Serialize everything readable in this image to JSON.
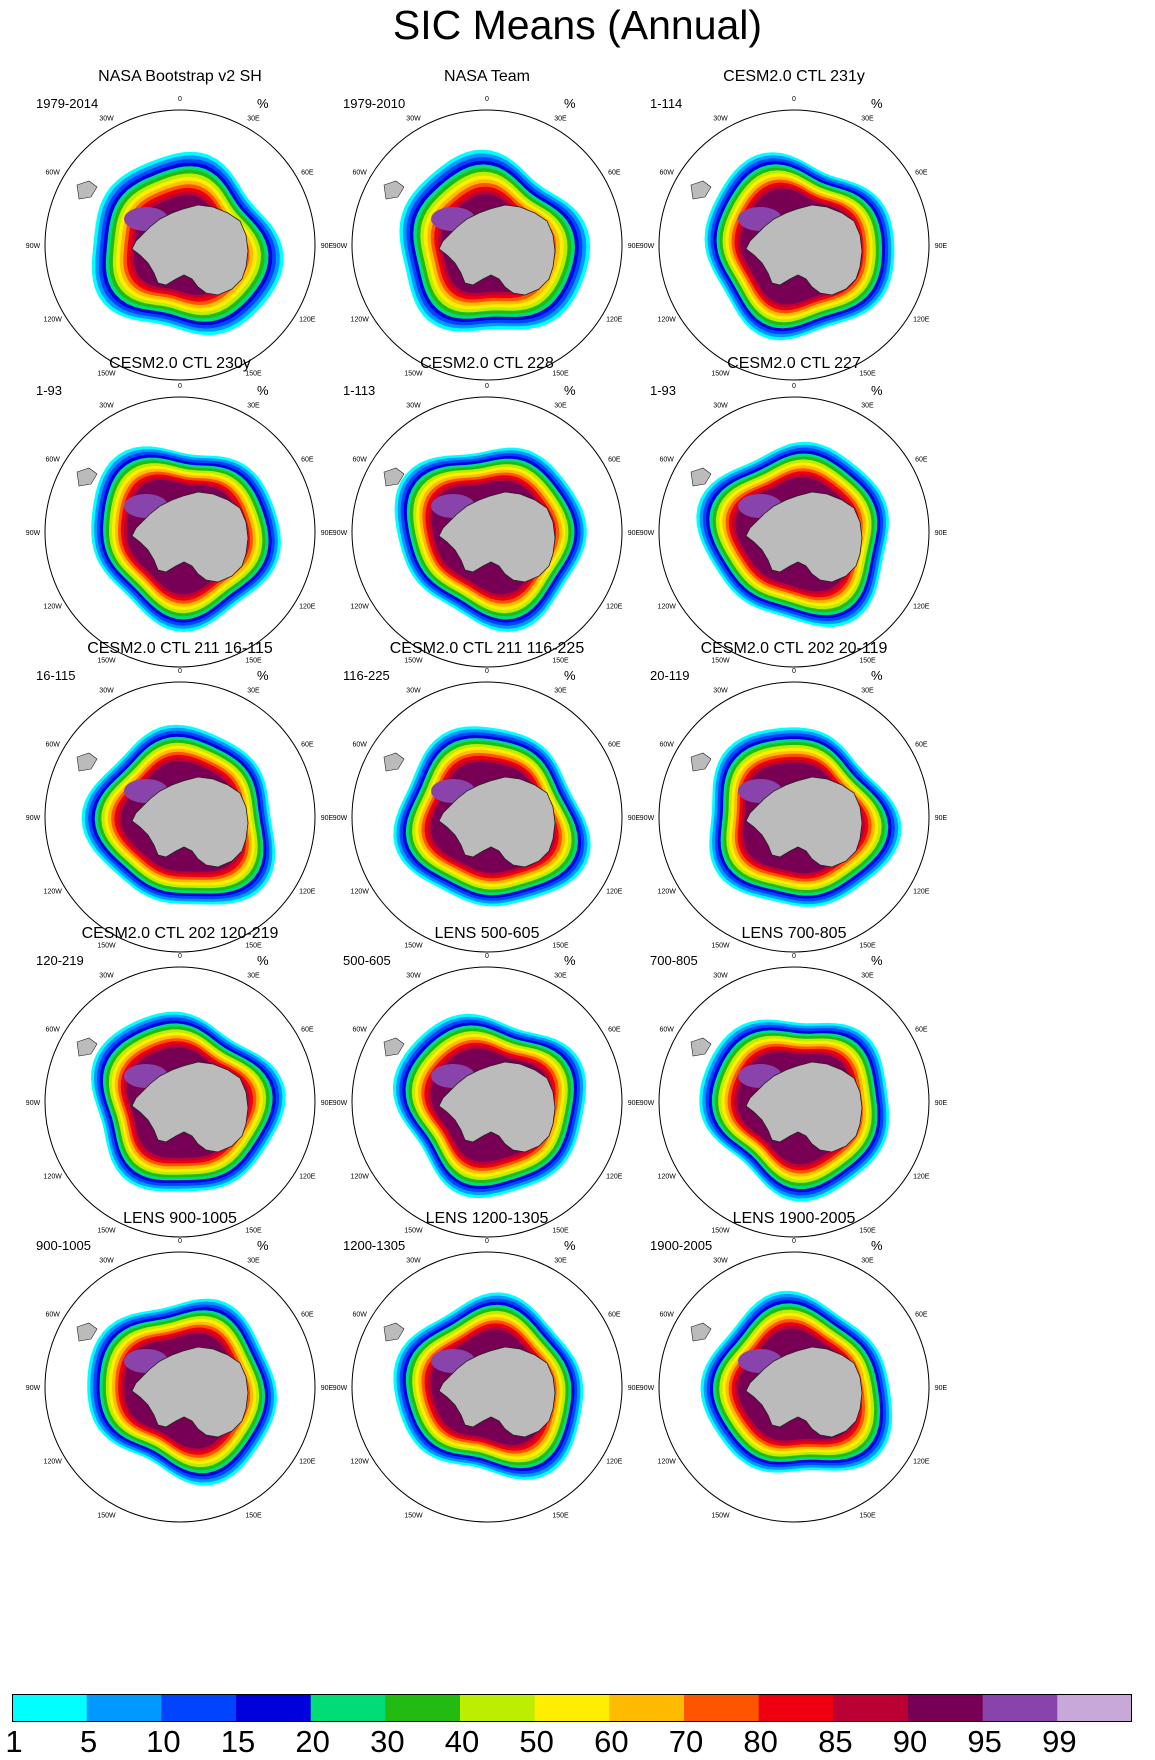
{
  "title": "SIC Means (Annual)",
  "unit": "%",
  "panels": [
    {
      "name": "NASA Bootstrap v2 SH",
      "years": "1979-2014"
    },
    {
      "name": "NASA Team",
      "years": "1979-2010"
    },
    {
      "name": "CESM2.0 CTL 231y",
      "years": "1-114"
    },
    {
      "name": "CESM2.0 CTL 230y",
      "years": "1-93"
    },
    {
      "name": "CESM2.0 CTL 228",
      "years": "1-113"
    },
    {
      "name": "CESM2.0 CTL 227",
      "years": "1-93"
    },
    {
      "name": "CESM2.0 CTL 211 16-115",
      "years": "16-115"
    },
    {
      "name": "CESM2.0 CTL 211 116-225",
      "years": "116-225"
    },
    {
      "name": "CESM2.0 CTL 202 20-119",
      "years": "20-119"
    },
    {
      "name": "CESM2.0 CTL 202 120-219",
      "years": "120-219"
    },
    {
      "name": "LENS 500-605",
      "years": "500-605"
    },
    {
      "name": "LENS 700-805",
      "years": "700-805"
    },
    {
      "name": "LENS 900-1005",
      "years": "900-1005"
    },
    {
      "name": "LENS 1200-1305",
      "years": "1200-1305"
    },
    {
      "name": "LENS 1900-2005",
      "years": "1900-2005"
    }
  ],
  "longitude_labels": [
    "0",
    "30E",
    "60E",
    "90E",
    "120E",
    "150E",
    "180",
    "150W",
    "120W",
    "90W",
    "60W",
    "30W"
  ],
  "colorbar": {
    "labels": [
      "1",
      "5",
      "10",
      "15",
      "20",
      "30",
      "40",
      "50",
      "60",
      "70",
      "80",
      "85",
      "90",
      "95",
      "99"
    ],
    "colors": [
      "#00ffff",
      "#0099ff",
      "#0044ff",
      "#0000dd",
      "#00dd77",
      "#22bb11",
      "#bbee00",
      "#ffee00",
      "#ffbb00",
      "#ff5500",
      "#ee0011",
      "#bb0033",
      "#770055",
      "#8844aa",
      "#c8a8d8"
    ]
  }
}
